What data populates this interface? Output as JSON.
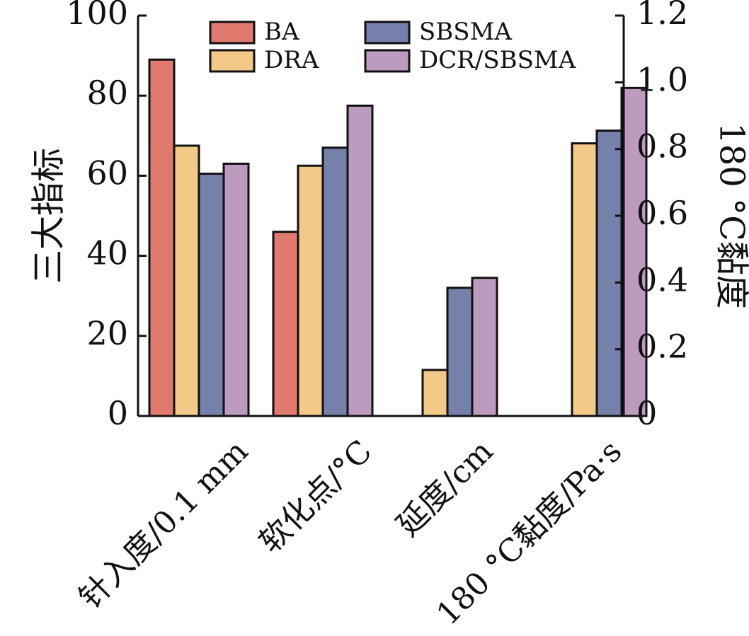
{
  "chart_data": {
    "type": "bar",
    "categories": [
      "针入度/0.1 mm",
      "软化点/°C",
      "延度/cm",
      "180 °C黏度/Pa·s"
    ],
    "series": [
      {
        "name": "BA",
        "color": "#E07A6F",
        "values": [
          89,
          46,
          null,
          null
        ]
      },
      {
        "name": "DRA",
        "color": "#F2C987",
        "values": [
          67.5,
          62.5,
          11.5,
          0.817
        ]
      },
      {
        "name": "SBSMA",
        "color": "#7581AB",
        "values": [
          60.5,
          67,
          32,
          0.855
        ]
      },
      {
        "name": "DCR/SBSMA",
        "color": "#BC9BBE",
        "values": [
          63,
          77.5,
          34.5,
          0.983
        ]
      }
    ],
    "axis_assignment": [
      "left",
      "left",
      "left",
      "right"
    ],
    "ylabel": "三大指标",
    "ylabel_right": "180 °C黏度",
    "ylim": [
      0,
      100
    ],
    "ylim_right": [
      0,
      1.2
    ],
    "yticks": [
      "0",
      "20",
      "40",
      "60",
      "80",
      "100"
    ],
    "yticks_right": [
      "0",
      "0.2",
      "0.4",
      "0.6",
      "0.8",
      "1.0",
      "1.2"
    ],
    "legend_position": "top",
    "grid": false
  }
}
